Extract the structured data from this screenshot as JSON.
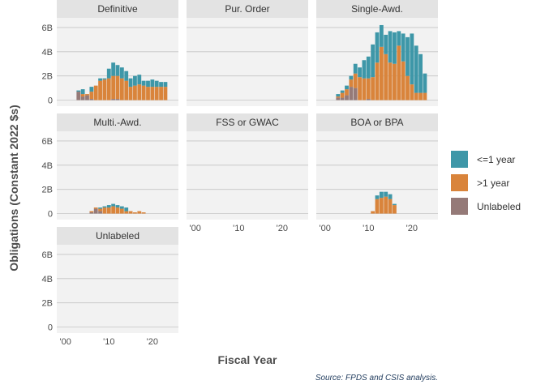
{
  "chart_data": {
    "type": "bar",
    "stacked": true,
    "facets": [
      "Definitive",
      "Pur. Order",
      "Single-Awd.",
      "Multi.-Awd.",
      "FSS or GWAC",
      "BOA or BPA",
      "Unlabeled"
    ],
    "x": [
      2000,
      2001,
      2002,
      2003,
      2004,
      2005,
      2006,
      2007,
      2008,
      2009,
      2010,
      2011,
      2012,
      2013,
      2014,
      2015,
      2016,
      2017,
      2018,
      2019,
      2020,
      2021,
      2022,
      2023,
      2024
    ],
    "xlim": [
      -2,
      26
    ],
    "ylim": [
      -0.5,
      6.8
    ],
    "y_ticks": [
      0,
      2,
      4,
      6
    ],
    "y_tick_labels": [
      "0",
      "2B",
      "4B",
      "6B"
    ],
    "x_ticks": [
      2000,
      2010,
      2020
    ],
    "x_tick_labels": [
      "'00",
      "'10",
      "'20"
    ],
    "xlabel": "Fiscal Year",
    "ylabel": "Obligations (Constant 2022 $s)",
    "legend": {
      "position": "right",
      "entries": [
        {
          "name": "<=1 year",
          "color": "#3e97a8"
        },
        {
          "name": ">1 year",
          "color": "#d9843b"
        },
        {
          "name": "Unlabeled",
          "color": "#957a78"
        }
      ]
    },
    "source": "Source: FPDS and CSIS analysis.",
    "grid": true,
    "panels": [
      {
        "facet": "Definitive",
        "series": [
          {
            "name": "Unlabeled",
            "values": [
              0,
              0,
              0,
              0.7,
              0.3,
              0.4,
              0.1,
              0,
              0,
              0,
              0,
              0.1,
              0.1,
              0,
              0,
              0,
              0,
              0,
              0,
              0,
              0,
              0,
              0,
              0,
              0
            ]
          },
          {
            "name": ">1 year",
            "values": [
              0,
              0,
              0,
              0,
              0.2,
              0.1,
              0.6,
              1.2,
              1.6,
              1.7,
              1.8,
              1.9,
              1.9,
              1.8,
              1.6,
              1.1,
              1.2,
              1.3,
              1.2,
              1.1,
              1.1,
              1.1,
              1.1,
              1.1,
              0
            ]
          },
          {
            "name": "<=1 year",
            "values": [
              0,
              0,
              0,
              0.1,
              0.4,
              0,
              0.4,
              0,
              0.2,
              0.1,
              0.8,
              1.1,
              0.9,
              0.9,
              0.8,
              0.7,
              0.8,
              0.8,
              0.4,
              0.5,
              0.6,
              0.5,
              0.4,
              0.4,
              0
            ]
          }
        ]
      },
      {
        "facet": "Pur. Order",
        "series": [
          {
            "name": "Unlabeled",
            "values": [
              0,
              0,
              0,
              0,
              0,
              0,
              0,
              0,
              0,
              0,
              0,
              0,
              0,
              0,
              0,
              0,
              0,
              0,
              0,
              0,
              0,
              0,
              0,
              0,
              0
            ]
          },
          {
            "name": ">1 year",
            "values": [
              0,
              0,
              0,
              0,
              0,
              0,
              0,
              0,
              0,
              0,
              0,
              0,
              0,
              0,
              0,
              0,
              0,
              0,
              0,
              0,
              0,
              0,
              0,
              0,
              0
            ]
          },
          {
            "name": "<=1 year",
            "values": [
              0,
              0,
              0,
              0,
              0,
              0,
              0,
              0,
              0,
              0,
              0,
              0,
              0,
              0,
              0,
              0,
              0,
              0,
              0,
              0,
              0,
              0,
              0,
              0,
              0
            ]
          }
        ]
      },
      {
        "facet": "Single-Awd.",
        "series": [
          {
            "name": "Unlabeled",
            "values": [
              0,
              0,
              0,
              0.2,
              0.2,
              0.4,
              1.1,
              1.0,
              0,
              0,
              0.1,
              0,
              0,
              0,
              0,
              0,
              0,
              0,
              0,
              0,
              0,
              0,
              0,
              0,
              0
            ]
          },
          {
            "name": ">1 year",
            "values": [
              0,
              0,
              0,
              0.1,
              0.4,
              0.5,
              0.6,
              1.2,
              1.9,
              1.8,
              1.7,
              1.9,
              3.1,
              4.4,
              3.8,
              3.1,
              3.0,
              4.5,
              3.2,
              2.0,
              1.3,
              0.6,
              0.6,
              0.6,
              0
            ]
          },
          {
            "name": "<=1 year",
            "values": [
              0,
              0,
              0,
              0.2,
              0.2,
              0.3,
              0.3,
              0.8,
              0.8,
              1.5,
              1.8,
              2.7,
              2.5,
              1.8,
              1.6,
              2.6,
              2.6,
              1.2,
              2.3,
              3.2,
              4.2,
              3.9,
              3.2,
              1.6,
              0
            ]
          }
        ]
      },
      {
        "facet": "Multi.-Awd.",
        "series": [
          {
            "name": "Unlabeled",
            "values": [
              0,
              0,
              0,
              0,
              0,
              0,
              0.1,
              0.4,
              0.2,
              0,
              0,
              0,
              0,
              0,
              0,
              0,
              0,
              0,
              0,
              0,
              0,
              0,
              0,
              0,
              0
            ]
          },
          {
            "name": ">1 year",
            "values": [
              0,
              0,
              0,
              0,
              0,
              0,
              0.1,
              0.1,
              0.2,
              0.5,
              0.5,
              0.6,
              0.5,
              0.4,
              0.2,
              0.2,
              0.1,
              0.2,
              0.1,
              0,
              0,
              0,
              0,
              0,
              0
            ]
          },
          {
            "name": "<=1 year",
            "values": [
              0,
              0,
              0,
              0,
              0,
              0,
              0,
              0,
              0.1,
              0.1,
              0.2,
              0.2,
              0.2,
              0.2,
              0.3,
              0,
              0,
              0,
              0,
              0,
              0,
              0,
              0,
              0,
              0
            ]
          }
        ]
      },
      {
        "facet": "FSS or GWAC",
        "series": [
          {
            "name": "Unlabeled",
            "values": [
              0,
              0,
              0,
              0,
              0,
              0,
              0,
              0,
              0,
              0,
              0,
              0,
              0,
              0,
              0,
              0,
              0,
              0,
              0,
              0,
              0,
              0,
              0,
              0,
              0
            ]
          },
          {
            "name": ">1 year",
            "values": [
              0,
              0,
              0,
              0,
              0,
              0,
              0,
              0,
              0,
              0,
              0,
              0,
              0,
              0,
              0,
              0,
              0,
              0,
              0,
              0,
              0,
              0,
              0,
              0,
              0
            ]
          },
          {
            "name": "<=1 year",
            "values": [
              0,
              0,
              0,
              0,
              0,
              0,
              0,
              0,
              0,
              0,
              0,
              0,
              0,
              0,
              0,
              0,
              0,
              0,
              0,
              0,
              0,
              0,
              0,
              0,
              0
            ]
          }
        ]
      },
      {
        "facet": "BOA or BPA",
        "series": [
          {
            "name": "Unlabeled",
            "values": [
              0,
              0,
              0,
              0,
              0,
              0,
              0,
              0,
              0,
              0,
              0,
              0,
              0,
              0,
              0,
              0,
              0,
              0,
              0,
              0,
              0,
              0,
              0,
              0,
              0
            ]
          },
          {
            "name": ">1 year",
            "values": [
              0,
              0,
              0,
              0,
              0,
              0,
              0,
              0,
              0,
              0,
              0,
              0.2,
              1.2,
              1.3,
              1.4,
              1.2,
              0.7,
              0,
              0,
              0,
              0,
              0,
              0,
              0,
              0
            ]
          },
          {
            "name": "<=1 year",
            "values": [
              0,
              0,
              0,
              0,
              0,
              0,
              0,
              0,
              0,
              0,
              0,
              0,
              0.3,
              0.5,
              0.4,
              0.4,
              0.1,
              0,
              0,
              0,
              0,
              0,
              0,
              0,
              0
            ]
          }
        ]
      },
      {
        "facet": "Unlabeled",
        "series": [
          {
            "name": "Unlabeled",
            "values": [
              0,
              0,
              0,
              0,
              0,
              0,
              0,
              0,
              0,
              0,
              0,
              0,
              0,
              0,
              0,
              0,
              0,
              0,
              0,
              0,
              0,
              0,
              0,
              0,
              0
            ]
          },
          {
            "name": ">1 year",
            "values": [
              0,
              0,
              0,
              0,
              0,
              0,
              0,
              0,
              0,
              0,
              0,
              0,
              0,
              0,
              0,
              0,
              0,
              0,
              0,
              0,
              0,
              0,
              0,
              0,
              0
            ]
          },
          {
            "name": "<=1 year",
            "values": [
              0,
              0,
              0,
              0,
              0,
              0,
              0,
              0,
              0,
              0,
              0,
              0,
              0,
              0,
              0,
              0,
              0,
              0,
              0,
              0,
              0,
              0,
              0,
              0,
              0
            ]
          }
        ]
      }
    ]
  }
}
